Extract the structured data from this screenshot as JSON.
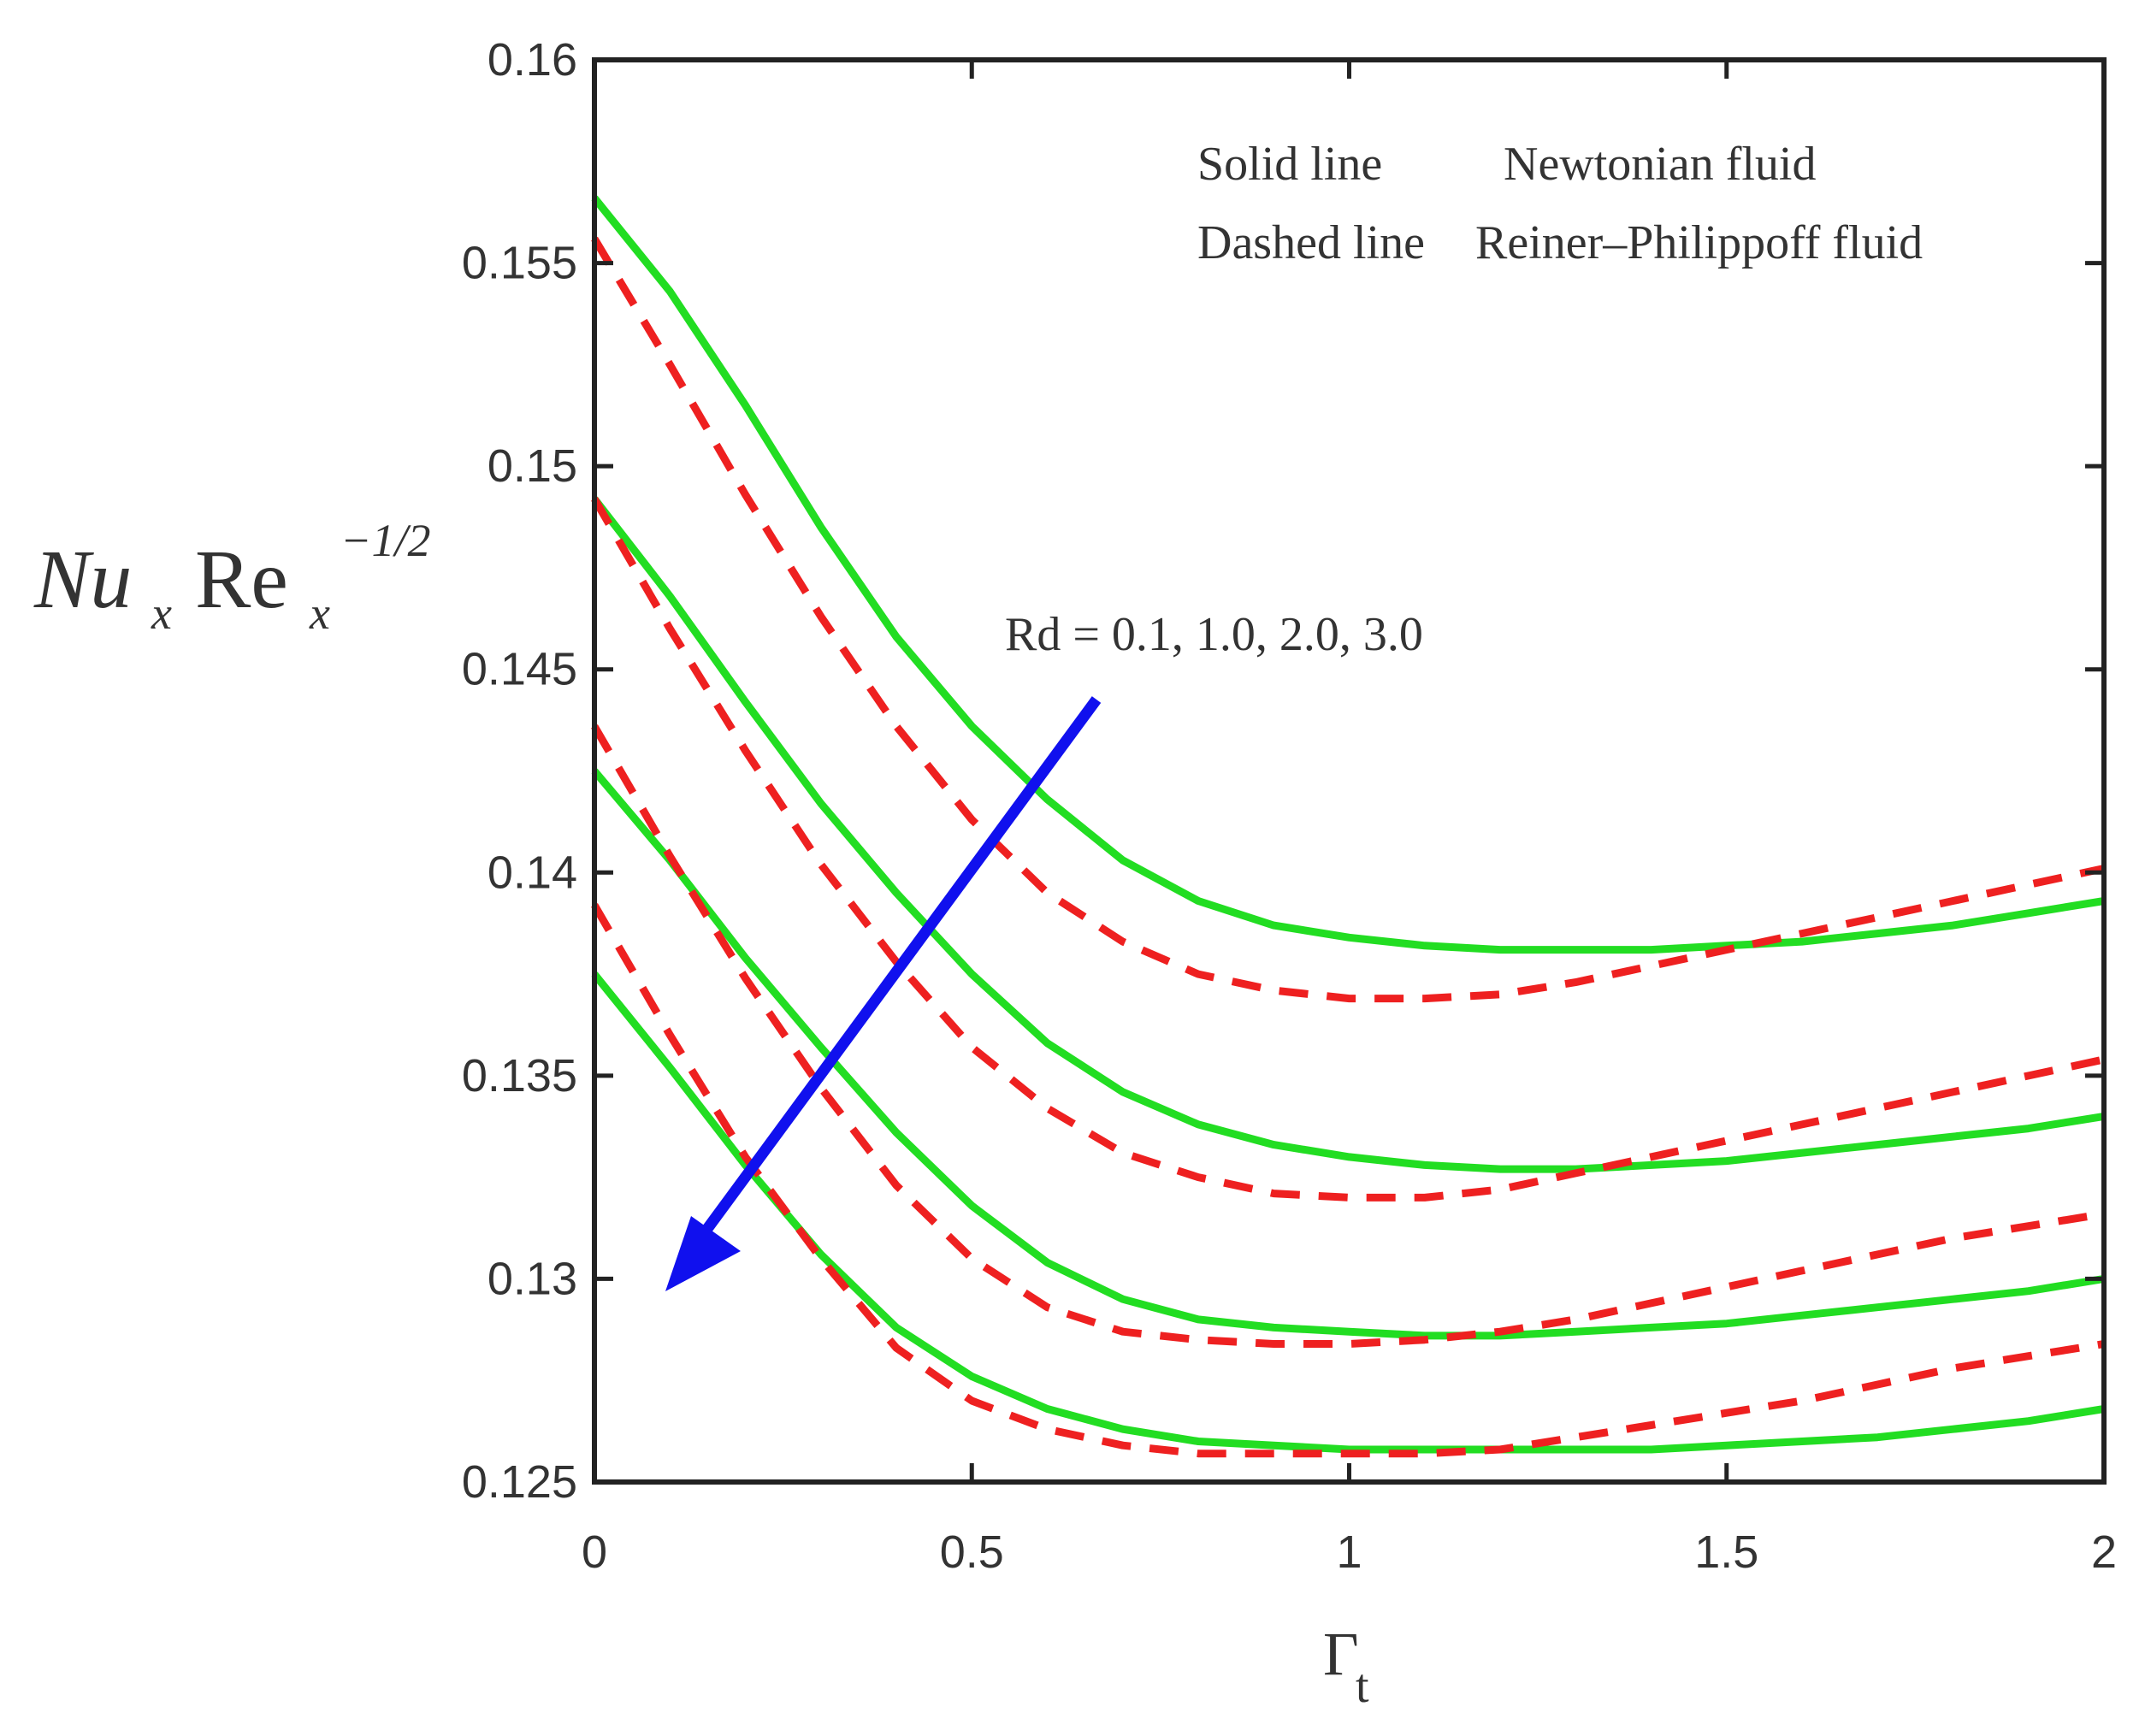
{
  "chart_data": {
    "type": "line",
    "title": "",
    "xlabel": "Γt",
    "ylabel": "Nu_x Re_x^(-1/2)",
    "ylabel_parts": {
      "main1": "Nu",
      "sub1": "x",
      "main2": "Re",
      "sub2": "x",
      "sup": "−1/2"
    },
    "xlabel_parts": {
      "main": "Γ",
      "sub": "t"
    },
    "xlim": [
      0,
      2
    ],
    "ylim": [
      0.125,
      0.16
    ],
    "xticks": [
      0,
      0.5,
      1,
      1.5,
      2
    ],
    "xtick_labels": [
      "0",
      "0.5",
      "1",
      "1.5",
      "2"
    ],
    "yticks": [
      0.125,
      0.13,
      0.135,
      0.14,
      0.145,
      0.15,
      0.155,
      0.16
    ],
    "ytick_labels": [
      "0.125",
      "0.13",
      "0.135",
      "0.14",
      "0.145",
      "0.15",
      "0.155",
      "0.16"
    ],
    "grid": false,
    "legend": {
      "placement": "top-right",
      "row1_key": "Solid line",
      "row1_value": "Newtonian fluid",
      "row2_key": "Dashed line",
      "row2_value": "Reiner–Philippoff fluid"
    },
    "annotation": {
      "text": "Rd = 0.1, 1.0, 2.0, 3.0",
      "arrow_color": "#1010ee"
    },
    "colors": {
      "newtonian": "#22dd22",
      "reiner": "#ee2020",
      "axis": "#222222"
    },
    "series": [
      {
        "name": "Newtonian, Rd = 0.1",
        "style": "solid",
        "x": [
          0,
          0.1,
          0.2,
          0.3,
          0.4,
          0.5,
          0.6,
          0.7,
          0.8,
          0.9,
          1.0,
          1.1,
          1.2,
          1.3,
          1.4,
          1.5,
          1.6,
          1.7,
          1.8,
          1.9,
          2.0
        ],
        "y": [
          0.1566,
          0.1543,
          0.1515,
          0.1485,
          0.1458,
          0.1436,
          0.1418,
          0.1403,
          0.1393,
          0.1387,
          0.1384,
          0.1382,
          0.1381,
          0.1381,
          0.1381,
          0.1382,
          0.1383,
          0.1385,
          0.1387,
          0.139,
          0.1393
        ]
      },
      {
        "name": "Reiner–Philippoff, Rd = 0.1",
        "style": "dashed",
        "x": [
          0,
          0.1,
          0.2,
          0.3,
          0.4,
          0.5,
          0.6,
          0.7,
          0.8,
          0.9,
          1.0,
          1.1,
          1.2,
          1.3,
          1.4,
          1.5,
          1.6,
          1.7,
          1.8,
          1.9,
          2.0
        ],
        "y": [
          0.1556,
          0.1525,
          0.1493,
          0.1463,
          0.1436,
          0.1413,
          0.1395,
          0.1383,
          0.1375,
          0.1371,
          0.1369,
          0.1369,
          0.137,
          0.1373,
          0.1377,
          0.1381,
          0.1385,
          0.1389,
          0.1393,
          0.1397,
          0.1401
        ]
      },
      {
        "name": "Newtonian, Rd = 1.0",
        "style": "solid",
        "x": [
          0,
          0.1,
          0.2,
          0.3,
          0.4,
          0.5,
          0.6,
          0.7,
          0.8,
          0.9,
          1.0,
          1.1,
          1.2,
          1.3,
          1.4,
          1.5,
          1.6,
          1.7,
          1.8,
          1.9,
          2.0
        ],
        "y": [
          0.1492,
          0.1468,
          0.1442,
          0.1417,
          0.1395,
          0.1375,
          0.1358,
          0.1346,
          0.1338,
          0.1333,
          0.133,
          0.1328,
          0.1327,
          0.1327,
          0.1328,
          0.1329,
          0.1331,
          0.1333,
          0.1335,
          0.1337,
          0.134
        ]
      },
      {
        "name": "Reiner–Philippoff, Rd = 1.0",
        "style": "dashed",
        "x": [
          0,
          0.1,
          0.2,
          0.3,
          0.4,
          0.5,
          0.6,
          0.7,
          0.8,
          0.9,
          1.0,
          1.1,
          1.2,
          1.3,
          1.4,
          1.5,
          1.6,
          1.7,
          1.8,
          1.9,
          2.0
        ],
        "y": [
          0.1492,
          0.146,
          0.143,
          0.1402,
          0.1378,
          0.1357,
          0.1342,
          0.1331,
          0.1325,
          0.1321,
          0.132,
          0.132,
          0.1322,
          0.1326,
          0.133,
          0.1334,
          0.1338,
          0.1342,
          0.1346,
          0.135,
          0.1354
        ]
      },
      {
        "name": "Newtonian, Rd = 2.0",
        "style": "solid",
        "x": [
          0,
          0.1,
          0.2,
          0.3,
          0.4,
          0.5,
          0.6,
          0.7,
          0.8,
          0.9,
          1.0,
          1.1,
          1.2,
          1.3,
          1.4,
          1.5,
          1.6,
          1.7,
          1.8,
          1.9,
          2.0
        ],
        "y": [
          0.1425,
          0.1403,
          0.1379,
          0.1357,
          0.1336,
          0.1318,
          0.1304,
          0.1295,
          0.129,
          0.1288,
          0.1287,
          0.1286,
          0.1286,
          0.1287,
          0.1288,
          0.1289,
          0.1291,
          0.1293,
          0.1295,
          0.1297,
          0.13
        ]
      },
      {
        "name": "Reiner–Philippoff, Rd = 2.0",
        "style": "dashed",
        "x": [
          0,
          0.1,
          0.2,
          0.3,
          0.4,
          0.5,
          0.6,
          0.7,
          0.8,
          0.9,
          1.0,
          1.1,
          1.2,
          1.3,
          1.4,
          1.5,
          1.6,
          1.7,
          1.8,
          1.9,
          2.0
        ],
        "y": [
          0.1436,
          0.1404,
          0.1374,
          0.1347,
          0.1323,
          0.1305,
          0.1293,
          0.1287,
          0.1285,
          0.1284,
          0.1284,
          0.1285,
          0.1287,
          0.129,
          0.1294,
          0.1298,
          0.1302,
          0.1306,
          0.131,
          0.1313,
          0.1316
        ]
      },
      {
        "name": "Newtonian, Rd = 3.0",
        "style": "solid",
        "x": [
          0,
          0.1,
          0.2,
          0.3,
          0.4,
          0.5,
          0.6,
          0.7,
          0.8,
          0.9,
          1.0,
          1.1,
          1.2,
          1.3,
          1.4,
          1.5,
          1.6,
          1.7,
          1.8,
          1.9,
          2.0
        ],
        "y": [
          0.1375,
          0.1352,
          0.1328,
          0.1306,
          0.1288,
          0.1276,
          0.1268,
          0.1263,
          0.126,
          0.1259,
          0.1258,
          0.1258,
          0.1258,
          0.1258,
          0.1258,
          0.1259,
          0.126,
          0.1261,
          0.1263,
          0.1265,
          0.1268
        ]
      },
      {
        "name": "Reiner–Philippoff, Rd = 3.0",
        "style": "dashed",
        "x": [
          0,
          0.1,
          0.2,
          0.3,
          0.4,
          0.5,
          0.6,
          0.7,
          0.8,
          0.9,
          1.0,
          1.1,
          1.2,
          1.3,
          1.4,
          1.5,
          1.6,
          1.7,
          1.8,
          1.9,
          2.0
        ],
        "y": [
          0.1392,
          0.136,
          0.133,
          0.1305,
          0.1283,
          0.127,
          0.1263,
          0.1259,
          0.1257,
          0.1257,
          0.1257,
          0.1257,
          0.1258,
          0.1261,
          0.1264,
          0.1267,
          0.127,
          0.1274,
          0.1278,
          0.1281,
          0.1284
        ]
      }
    ]
  }
}
